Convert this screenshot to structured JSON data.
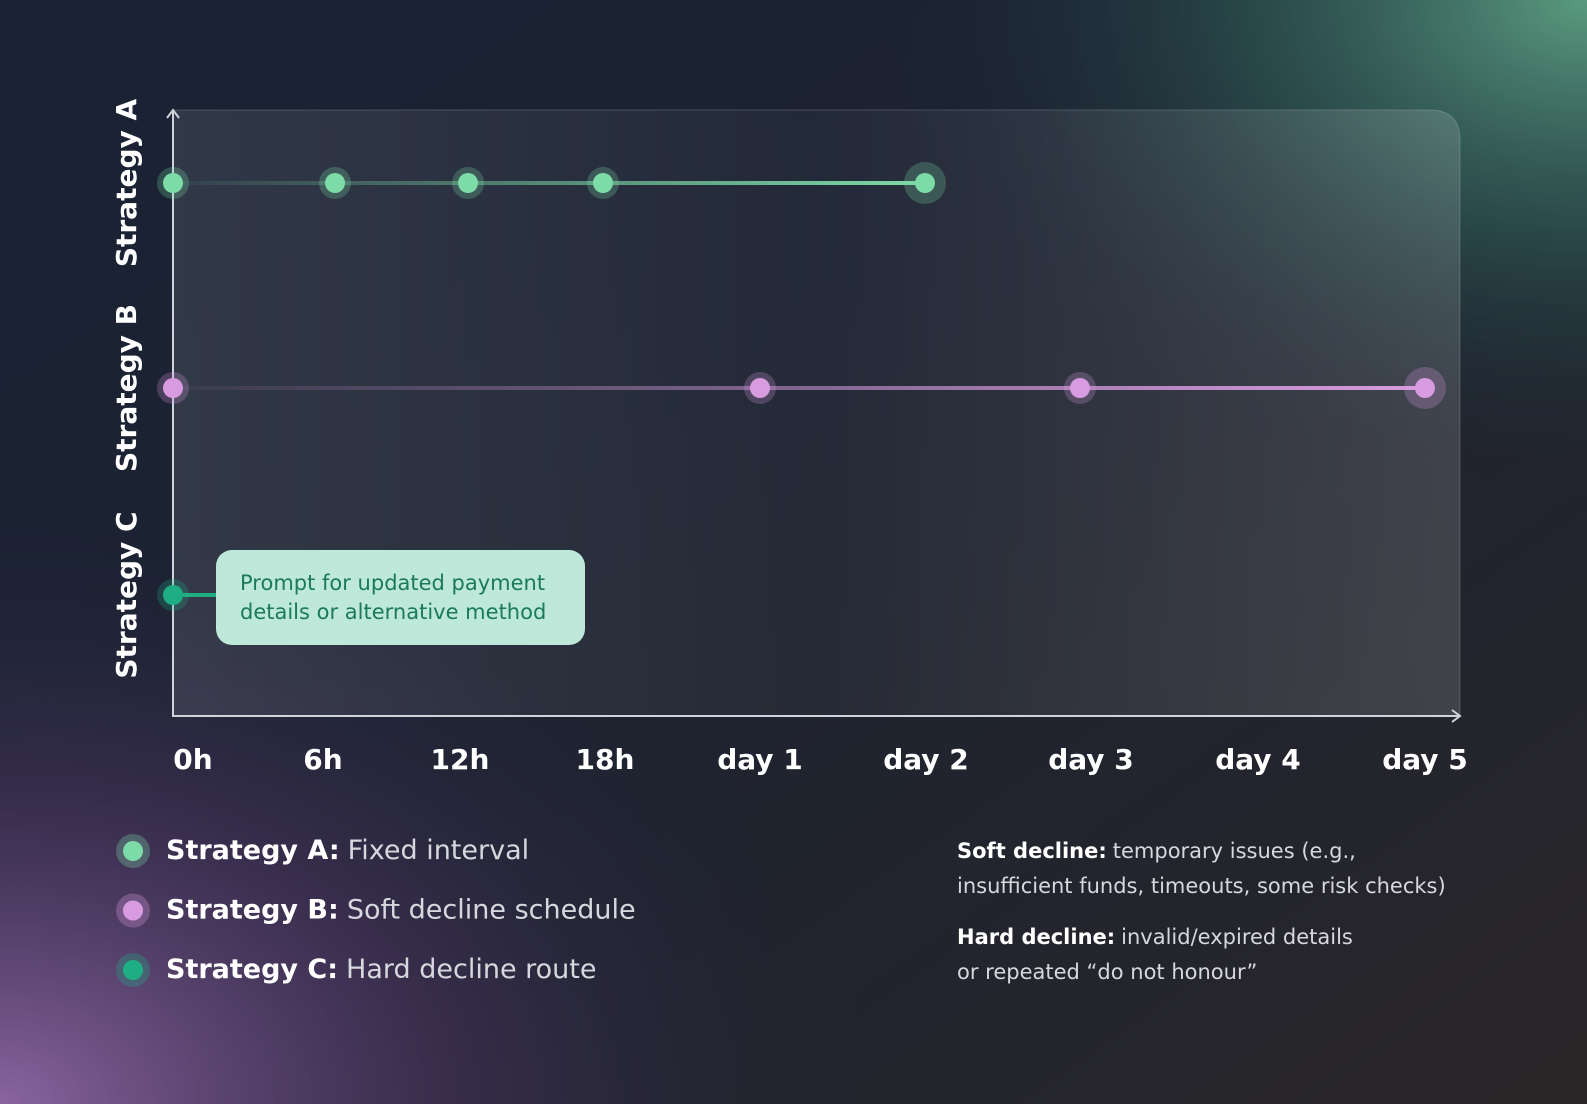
{
  "chart_data": {
    "type": "timeline",
    "xticks": [
      {
        "value": 0,
        "label": "0h"
      },
      {
        "value": 6,
        "label": "6h"
      },
      {
        "value": 12,
        "label": "12h"
      },
      {
        "value": 18,
        "label": "18h"
      },
      {
        "value": 24,
        "label": "day 1"
      },
      {
        "value": 48,
        "label": "day 2"
      },
      {
        "value": 72,
        "label": "day 3"
      },
      {
        "value": 96,
        "label": "day 4"
      },
      {
        "value": 120,
        "label": "day 5"
      }
    ],
    "xlim": [
      0,
      120
    ],
    "series": [
      {
        "name": "Strategy A",
        "legend_label": "Strategy A:",
        "legend_text": "Fixed interval",
        "color": "#7ddba8",
        "x": [
          0,
          6,
          12,
          18,
          48
        ]
      },
      {
        "name": "Strategy B",
        "legend_label": "Strategy B:",
        "legend_text": "Soft decline schedule",
        "color": "#d99be0",
        "x": [
          0,
          24,
          72,
          120
        ]
      },
      {
        "name": "Strategy C",
        "legend_label": "Strategy C:",
        "legend_text": "Hard decline route",
        "color": "#1fae84",
        "x": [
          0
        ]
      }
    ],
    "annotation": {
      "series": 2,
      "lines": [
        "Prompt for updated payment",
        "details or alternative method"
      ]
    },
    "notes": [
      {
        "label": "Soft decline:",
        "lines": [
          "temporary issues (e.g.,",
          "insufficient funds, timeouts, some risk checks)"
        ]
      },
      {
        "label": "Hard decline:",
        "lines": [
          "invalid/expired details",
          "or repeated “do not honour”"
        ]
      }
    ]
  }
}
